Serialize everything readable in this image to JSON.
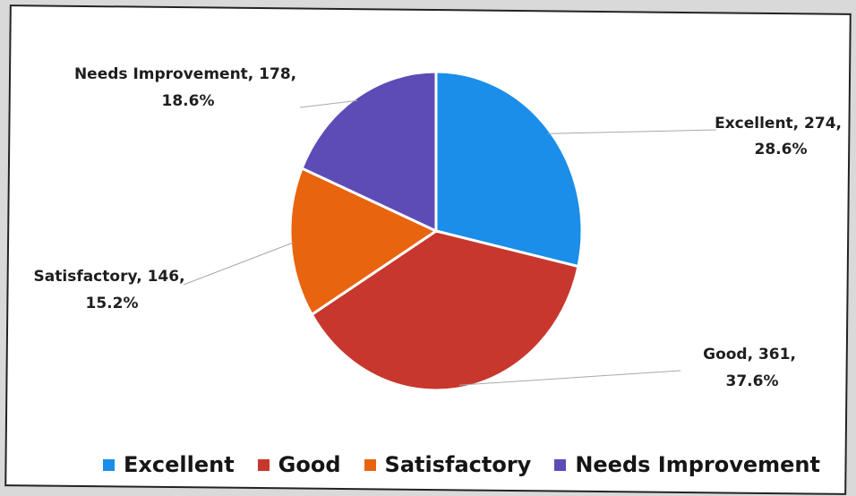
{
  "chart_data": {
    "type": "pie",
    "slices": [
      {
        "name": "Excellent",
        "value": 274,
        "percent": "28.6%",
        "color": "#1a8ee8"
      },
      {
        "name": "Good",
        "value": 361,
        "percent": "37.6%",
        "color": "#c8372d"
      },
      {
        "name": "Satisfactory",
        "value": 146,
        "percent": "15.2%",
        "color": "#e8640f"
      },
      {
        "name": "Needs Improvement",
        "value": 178,
        "percent": "18.6%",
        "color": "#5d4cb6"
      }
    ],
    "data_labels": [
      {
        "line1": "Excellent, 274,",
        "line2": "28.6%"
      },
      {
        "line1": "Good, 361,",
        "line2": "37.6%"
      },
      {
        "line1": "Satisfactory, 146,",
        "line2": "15.2%"
      },
      {
        "line1": "Needs Improvement, 178,",
        "line2": "18.6%"
      }
    ],
    "legend": {
      "position": "bottom",
      "items": [
        "Excellent",
        "Good",
        "Satisfactory",
        "Needs Improvement"
      ]
    }
  }
}
